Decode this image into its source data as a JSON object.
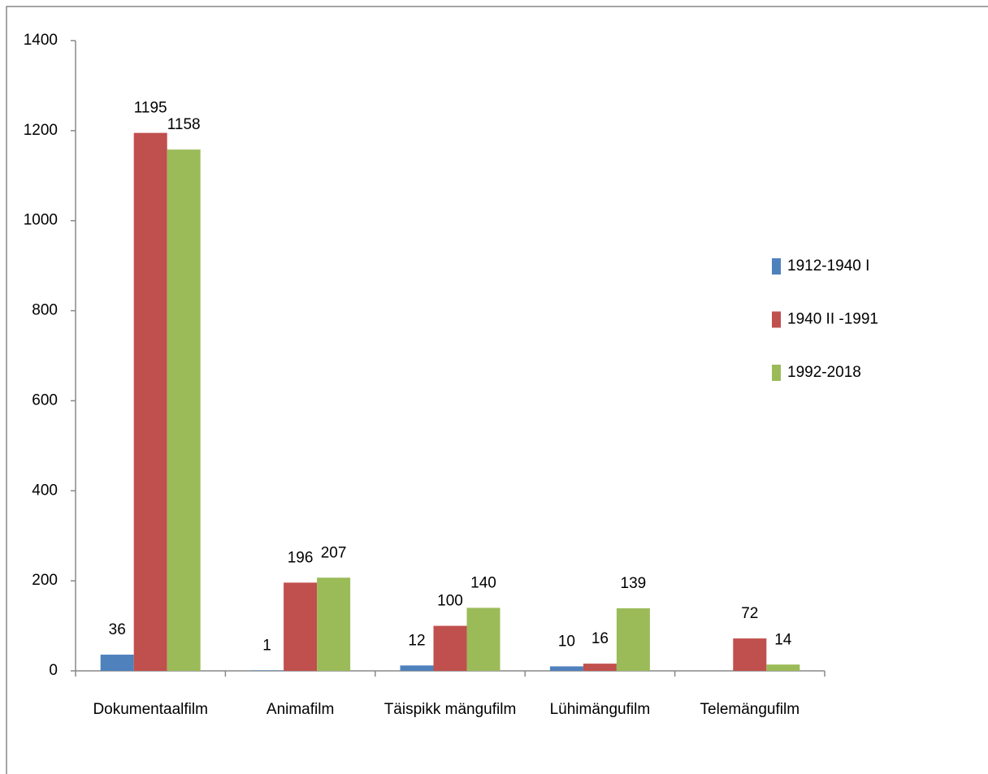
{
  "chart_data": {
    "type": "bar",
    "categories": [
      "Dokumentaalfilm",
      "Animafilm",
      "Täispikk mängufilm",
      "Lühimängufilm",
      "Telemängufilm"
    ],
    "series": [
      {
        "name": "1912-1940 I",
        "color": "#4f81bd",
        "values": [
          36,
          1,
          12,
          10,
          null
        ]
      },
      {
        "name": "1940 II -1991",
        "color": "#c0504d",
        "values": [
          1195,
          196,
          100,
          16,
          72
        ]
      },
      {
        "name": "1992-2018",
        "color": "#9bbb59",
        "values": [
          1158,
          207,
          140,
          139,
          14
        ]
      }
    ],
    "ylim": [
      0,
      1400
    ],
    "yticks": [
      0,
      200,
      400,
      600,
      800,
      1000,
      1200,
      1400
    ],
    "grid": false,
    "legend": "right"
  }
}
